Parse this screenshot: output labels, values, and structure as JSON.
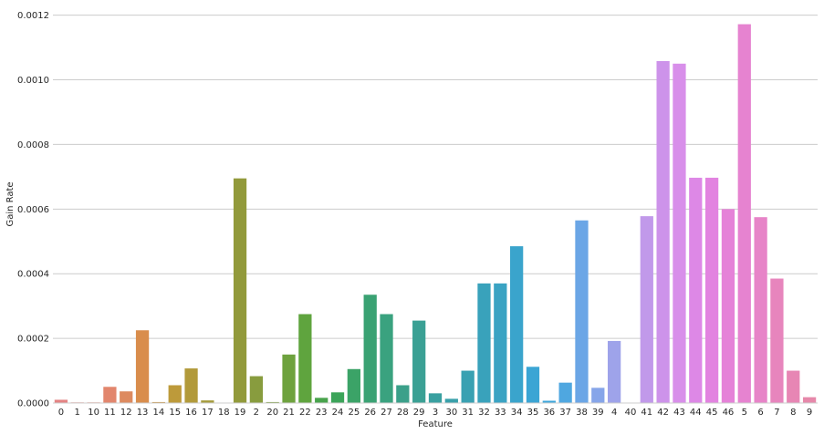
{
  "chart_data": {
    "type": "bar",
    "xlabel": "Feature",
    "ylabel": "Gain Rate",
    "ylim": [
      0,
      0.00123
    ],
    "grid": "horizontal",
    "categories": [
      "0",
      "1",
      "10",
      "11",
      "12",
      "13",
      "14",
      "15",
      "16",
      "17",
      "18",
      "19",
      "2",
      "20",
      "21",
      "22",
      "23",
      "24",
      "25",
      "26",
      "27",
      "28",
      "29",
      "3",
      "30",
      "31",
      "32",
      "33",
      "34",
      "35",
      "36",
      "37",
      "38",
      "39",
      "4",
      "40",
      "41",
      "42",
      "43",
      "44",
      "45",
      "46",
      "5",
      "6",
      "7",
      "8",
      "9"
    ],
    "values": [
      1e-05,
      2e-06,
      2e-06,
      5e-05,
      3.6e-05,
      0.000225,
      3e-06,
      5.5e-05,
      0.000107,
      8e-06,
      1e-06,
      0.000695,
      8.3e-05,
      3e-06,
      0.00015,
      0.000275,
      1.6e-05,
      3.3e-05,
      0.000105,
      0.000335,
      0.000275,
      5.5e-05,
      0.000255,
      3e-05,
      1.3e-05,
      0.0001,
      0.00037,
      0.00037,
      0.000485,
      0.000112,
      7e-06,
      6.3e-05,
      0.000565,
      4.7e-05,
      0.000192,
      1e-06,
      0.000578,
      0.001058,
      0.00105,
      0.000697,
      0.000697,
      0.0006,
      0.001172,
      0.000575,
      0.000385,
      0.0001,
      1.8e-05
    ],
    "yticks": [
      "0.0000",
      "0.0002",
      "0.0004",
      "0.0006",
      "0.0008",
      "0.0010",
      "0.0012"
    ],
    "ytick_values": [
      0,
      0.0002,
      0.0004,
      0.0006,
      0.0008,
      0.001,
      0.0012
    ],
    "colors": [
      "#e48282",
      "#e5837a",
      "#e58573",
      "#e2866d",
      "#dd8a5f",
      "#d98d4c",
      "#c9903a",
      "#bd9a3a",
      "#b29a3a",
      "#a49a3a",
      "#9a9a3a",
      "#929a3b",
      "#889c3e",
      "#7c9e3e",
      "#6ea23e",
      "#5fa43e",
      "#48a34c",
      "#3ba459",
      "#3ba367",
      "#3aa273",
      "#3aa27f",
      "#3ba08a",
      "#3aa094",
      "#39a0a0",
      "#39a0aa",
      "#39a1b2",
      "#39a2bb",
      "#3aa3c3",
      "#3aa4cc",
      "#3ba5d4",
      "#3ea7db",
      "#4fa7e0",
      "#6ba6e6",
      "#86a5e9",
      "#9ea3ea",
      "#b19fea",
      "#c199ea",
      "#cd93ea",
      "#d88fea",
      "#dd88e6",
      "#e283e0",
      "#e582d8",
      "#e683d0",
      "#e784c8",
      "#e785bd",
      "#e786b4",
      "#e688aa"
    ]
  }
}
